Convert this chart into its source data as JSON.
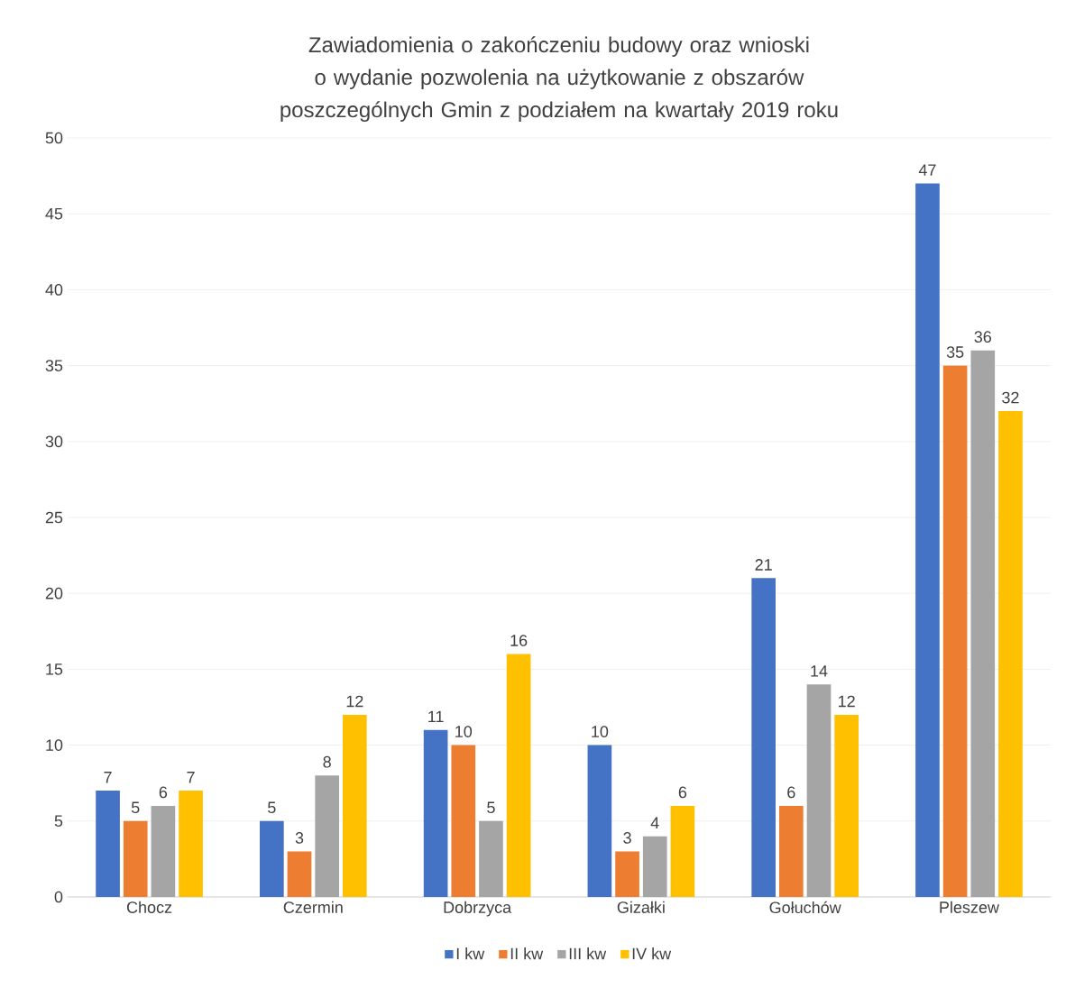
{
  "chart_data": {
    "type": "bar",
    "title": "Zawiadomienia o zakończeniu budowy oraz wnioski o wydanie pozwolenia na użytkowanie z obszarów poszczególnych Gmin z podziałem na kwartały 2019 roku",
    "categories": [
      "Chocz",
      "Czermin",
      "Dobrzyca",
      "Gizałki",
      "Gołuchów",
      "Pleszew"
    ],
    "series": [
      {
        "name": "I kw",
        "color": "#4472c4",
        "values": [
          7,
          5,
          11,
          10,
          21,
          47
        ]
      },
      {
        "name": "II kw",
        "color": "#ed7d31",
        "values": [
          5,
          3,
          10,
          3,
          6,
          35
        ]
      },
      {
        "name": "III kw",
        "color": "#a5a5a5",
        "values": [
          6,
          8,
          5,
          4,
          14,
          36
        ]
      },
      {
        "name": "IV kw",
        "color": "#ffc000",
        "values": [
          7,
          12,
          16,
          6,
          12,
          32
        ]
      }
    ],
    "ylim": [
      0,
      50
    ],
    "yticks": [
      0,
      5,
      10,
      15,
      20,
      25,
      30,
      35,
      40,
      45,
      50
    ],
    "grid": "y",
    "legend": "bottom",
    "data_labels": true
  }
}
